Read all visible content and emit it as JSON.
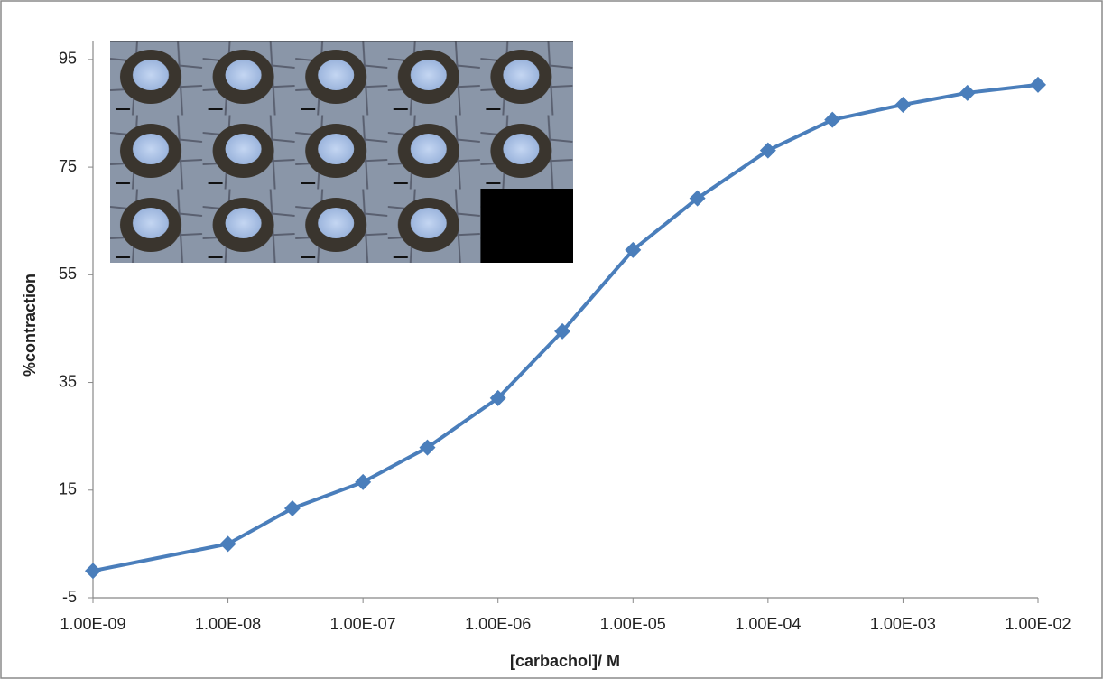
{
  "chart_data": {
    "type": "line",
    "x_label": "[carbachol]/ M",
    "y_label": "%contraction",
    "x": [
      1e-09,
      1e-08,
      3e-08,
      1e-07,
      3e-07,
      1e-06,
      3e-06,
      1e-05,
      3e-05,
      0.0001,
      0.0003,
      0.001,
      0.003,
      0.01
    ],
    "values": [
      0,
      5,
      11.6,
      16.5,
      22.9,
      32.1,
      44.5,
      59.6,
      69.2,
      78.1,
      83.8,
      86.6,
      88.8,
      90.3
    ],
    "color": "#4a7ebb",
    "marker": "diamond",
    "log_x": true,
    "grid": false,
    "xlim": [
      1e-09,
      0.01
    ],
    "xticks": [
      {
        "value": 1e-09,
        "label": "1.00E-09"
      },
      {
        "value": 1e-08,
        "label": "1.00E-08"
      },
      {
        "value": 1e-07,
        "label": "1.00E-07"
      },
      {
        "value": 1e-06,
        "label": "1.00E-06"
      },
      {
        "value": 1e-05,
        "label": "1.00E-05"
      },
      {
        "value": 0.0001,
        "label": "1.00E-04"
      },
      {
        "value": 0.001,
        "label": "1.00E-03"
      },
      {
        "value": 0.01,
        "label": "1.00E-02"
      }
    ],
    "ylim": [
      -5,
      98.5
    ],
    "yticks": [
      -5,
      15,
      35,
      55,
      75,
      95
    ]
  }
}
